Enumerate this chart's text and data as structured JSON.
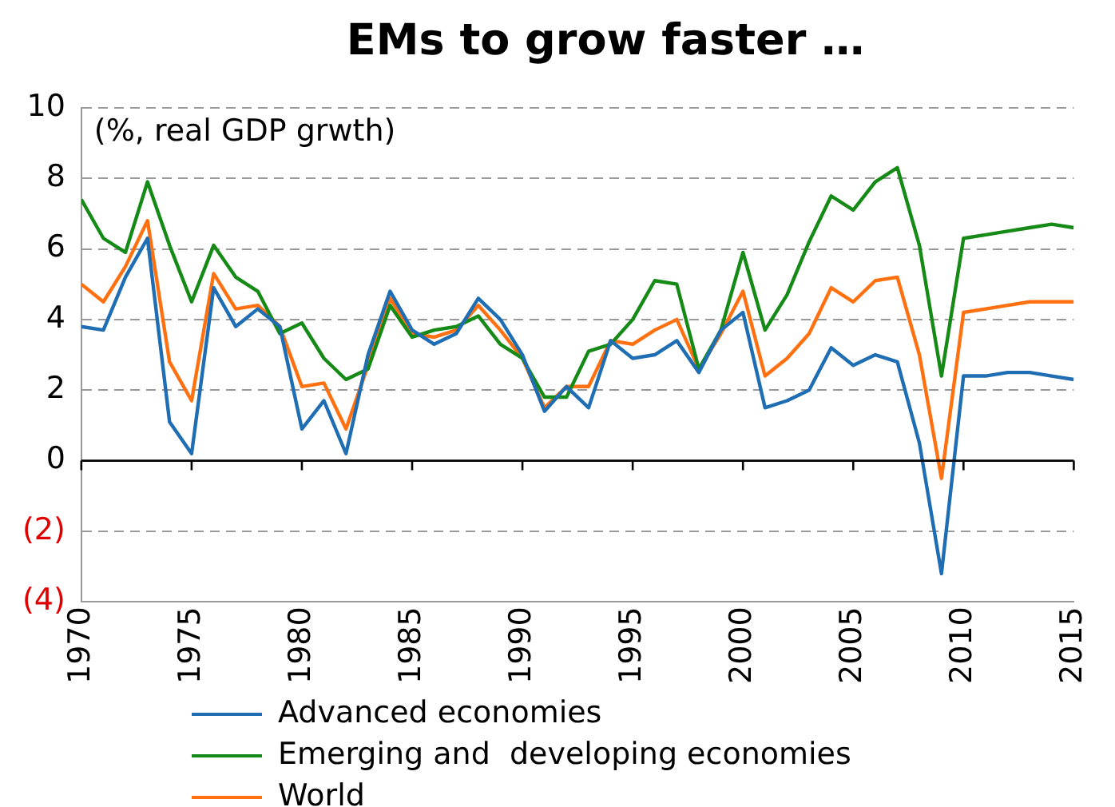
{
  "chart_data": {
    "type": "line",
    "title": "EMs to grow faster …",
    "annotations": [
      "(%, real GDP grwth)"
    ],
    "x": [
      1970,
      1971,
      1972,
      1973,
      1974,
      1975,
      1976,
      1977,
      1978,
      1979,
      1980,
      1981,
      1982,
      1983,
      1984,
      1985,
      1986,
      1987,
      1988,
      1989,
      1990,
      1991,
      1992,
      1993,
      1994,
      1995,
      1996,
      1997,
      1998,
      1999,
      2000,
      2001,
      2002,
      2003,
      2004,
      2005,
      2006,
      2007,
      2008,
      2009,
      2010,
      2011,
      2012,
      2013,
      2014,
      2015
    ],
    "series": [
      {
        "name": "Advanced economies",
        "color": "#1f6db3",
        "values": [
          3.8,
          3.7,
          5.2,
          6.3,
          1.1,
          0.2,
          4.9,
          3.8,
          4.3,
          3.8,
          0.9,
          1.7,
          0.2,
          3.0,
          4.8,
          3.7,
          3.3,
          3.6,
          4.6,
          4.0,
          3.0,
          1.4,
          2.1,
          1.5,
          3.4,
          2.9,
          3.0,
          3.4,
          2.5,
          3.7,
          4.2,
          1.5,
          1.7,
          2.0,
          3.2,
          2.7,
          3.0,
          2.8,
          0.5,
          -3.2,
          2.4,
          2.4,
          2.5,
          2.5,
          2.4,
          2.3
        ]
      },
      {
        "name": "Emerging and  developing economies",
        "color": "#168a16",
        "values": [
          7.4,
          6.3,
          5.9,
          7.9,
          6.1,
          4.5,
          6.1,
          5.2,
          4.8,
          3.6,
          3.9,
          2.9,
          2.3,
          2.6,
          4.4,
          3.5,
          3.7,
          3.8,
          4.1,
          3.3,
          2.9,
          1.8,
          1.8,
          3.1,
          3.3,
          4.0,
          5.1,
          5.0,
          2.6,
          3.7,
          5.9,
          3.7,
          4.7,
          6.2,
          7.5,
          7.1,
          7.9,
          8.3,
          6.1,
          2.4,
          6.3,
          6.4,
          6.5,
          6.6,
          6.7,
          6.6
        ]
      },
      {
        "name": "World",
        "color": "#ff7010",
        "values": [
          5.0,
          4.5,
          5.5,
          6.8,
          2.8,
          1.7,
          5.3,
          4.3,
          4.4,
          3.8,
          2.1,
          2.2,
          0.9,
          2.7,
          4.6,
          3.6,
          3.5,
          3.7,
          4.4,
          3.7,
          2.9,
          1.5,
          2.1,
          2.1,
          3.4,
          3.3,
          3.7,
          4.0,
          2.6,
          3.6,
          4.8,
          2.4,
          2.9,
          3.6,
          4.9,
          4.5,
          5.1,
          5.2,
          3.0,
          -0.5,
          4.2,
          4.3,
          4.4,
          4.5,
          4.5,
          4.5
        ]
      }
    ],
    "xlim": [
      1970,
      2015
    ],
    "xticks": [
      1970,
      1975,
      1980,
      1985,
      1990,
      1995,
      2000,
      2005,
      2010,
      2015
    ],
    "ylim": [
      -4,
      10
    ],
    "yticks": [
      {
        "value": -4,
        "label": "(4)"
      },
      {
        "value": -2,
        "label": "(2)"
      },
      0,
      2,
      4,
      6,
      8,
      10
    ],
    "grid": "y",
    "legend": "bottom",
    "marker": "none",
    "line_style": "solid"
  }
}
